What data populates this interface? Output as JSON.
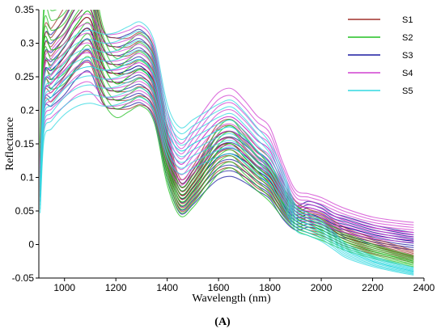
{
  "panel_label": "(A)",
  "chart_data": {
    "type": "line",
    "xlabel": "Wavelength (nm)",
    "ylabel": "Reflectance",
    "xlim": [
      900,
      2400
    ],
    "ylim": [
      -0.05,
      0.35
    ],
    "x_ticks": [
      1000,
      1200,
      1400,
      1600,
      1800,
      2000,
      2200,
      2400
    ],
    "y_ticks": [
      -0.05,
      0,
      0.05,
      0.1,
      0.15,
      0.2,
      0.25,
      0.3,
      0.35
    ],
    "x_tick_labels": [
      "1000",
      "1200",
      "1400",
      "1600",
      "1800",
      "2000",
      "2200",
      "2400"
    ],
    "y_tick_labels": [
      "-0.05",
      "0",
      "0.05",
      "0.1",
      "0.15",
      "0.2",
      "0.25",
      "0.3",
      "0.35"
    ],
    "grid": false,
    "legend_position": "top-right",
    "series": [
      {
        "name": "S1",
        "color": "#a0302a",
        "x": [
          905,
          920,
          950,
          1000,
          1050,
          1100,
          1150,
          1200,
          1250,
          1300,
          1350,
          1400,
          1450,
          1500,
          1550,
          1600,
          1650,
          1700,
          1750,
          1800,
          1850,
          1900,
          1950,
          2000,
          2050,
          2100,
          2200,
          2300,
          2360
        ],
        "y": [
          0.1,
          0.262,
          0.268,
          0.295,
          0.325,
          0.335,
          0.265,
          0.255,
          0.255,
          0.262,
          0.24,
          0.14,
          0.075,
          0.09,
          0.12,
          0.145,
          0.15,
          0.135,
          0.115,
          0.1,
          0.07,
          0.045,
          0.035,
          0.03,
          0.02,
          0.01,
          -0.002,
          -0.012,
          -0.018
        ]
      },
      {
        "name": "S2",
        "color": "#22c022",
        "x": [
          905,
          920,
          950,
          1000,
          1050,
          1100,
          1150,
          1200,
          1250,
          1300,
          1350,
          1400,
          1450,
          1500,
          1550,
          1600,
          1650,
          1700,
          1750,
          1800,
          1850,
          1900,
          1950,
          2000,
          2050,
          2100,
          2200,
          2300,
          2360
        ],
        "y": [
          0.12,
          0.3,
          0.29,
          0.3,
          0.33,
          0.345,
          0.27,
          0.24,
          0.25,
          0.26,
          0.23,
          0.12,
          0.065,
          0.08,
          0.11,
          0.14,
          0.15,
          0.13,
          0.11,
          0.09,
          0.062,
          0.04,
          0.03,
          0.022,
          0.012,
          0.003,
          -0.01,
          -0.02,
          -0.025
        ]
      },
      {
        "name": "S3",
        "color": "#1a1aa0",
        "x": [
          905,
          920,
          950,
          1000,
          1050,
          1100,
          1150,
          1200,
          1250,
          1300,
          1350,
          1400,
          1450,
          1500,
          1550,
          1600,
          1650,
          1700,
          1750,
          1800,
          1850,
          1900,
          1950,
          2000,
          2050,
          2100,
          2200,
          2300,
          2360
        ],
        "y": [
          0.1,
          0.25,
          0.26,
          0.28,
          0.31,
          0.32,
          0.265,
          0.255,
          0.26,
          0.265,
          0.235,
          0.13,
          0.07,
          0.085,
          0.11,
          0.13,
          0.135,
          0.125,
          0.11,
          0.095,
          0.06,
          0.04,
          0.045,
          0.04,
          0.03,
          0.025,
          0.015,
          0.008,
          0.005
        ]
      },
      {
        "name": "S4",
        "color": "#d040d0",
        "x": [
          905,
          920,
          950,
          1000,
          1050,
          1100,
          1150,
          1200,
          1250,
          1300,
          1350,
          1400,
          1450,
          1500,
          1550,
          1600,
          1650,
          1700,
          1750,
          1800,
          1850,
          1900,
          1950,
          2000,
          2050,
          2100,
          2200,
          2300,
          2360
        ],
        "y": [
          0.09,
          0.22,
          0.24,
          0.26,
          0.28,
          0.285,
          0.262,
          0.26,
          0.265,
          0.27,
          0.245,
          0.16,
          0.12,
          0.14,
          0.165,
          0.185,
          0.19,
          0.175,
          0.155,
          0.14,
          0.095,
          0.06,
          0.055,
          0.05,
          0.042,
          0.035,
          0.025,
          0.02,
          0.018
        ]
      },
      {
        "name": "S5",
        "color": "#30d8e0",
        "x": [
          905,
          920,
          950,
          1000,
          1050,
          1100,
          1150,
          1200,
          1250,
          1300,
          1350,
          1400,
          1450,
          1500,
          1550,
          1600,
          1650,
          1700,
          1750,
          1800,
          1850,
          1900,
          1950,
          2000,
          2050,
          2100,
          2200,
          2300,
          2360
        ],
        "y": [
          0.07,
          0.2,
          0.22,
          0.245,
          0.26,
          0.265,
          0.26,
          0.262,
          0.27,
          0.275,
          0.25,
          0.17,
          0.14,
          0.15,
          0.16,
          0.17,
          0.175,
          0.16,
          0.14,
          0.12,
          0.085,
          0.04,
          0.03,
          0.02,
          0.005,
          -0.01,
          -0.025,
          -0.035,
          -0.04
        ]
      }
    ]
  }
}
